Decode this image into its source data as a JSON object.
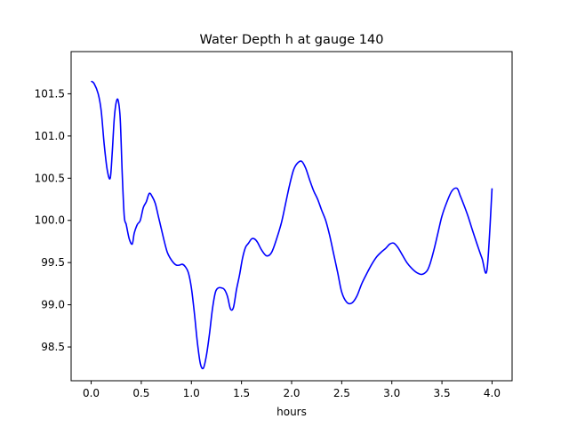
{
  "chart_data": {
    "type": "line",
    "title": "Water Depth h at gauge 140",
    "xlabel": "hours",
    "ylabel": "",
    "xlim": [
      -0.2,
      4.2
    ],
    "ylim": [
      98.1,
      102.0
    ],
    "xticks": [
      0.0,
      0.5,
      1.0,
      1.5,
      2.0,
      2.5,
      3.0,
      3.5,
      4.0
    ],
    "xtick_labels": [
      "0.0",
      "0.5",
      "1.0",
      "1.5",
      "2.0",
      "2.5",
      "3.0",
      "3.5",
      "4.0"
    ],
    "yticks": [
      98.5,
      99.0,
      99.5,
      100.0,
      100.5,
      101.0,
      101.5
    ],
    "ytick_labels": [
      "98.5",
      "99.0",
      "99.5",
      "100.0",
      "100.5",
      "101.0",
      "101.5"
    ],
    "grid": false,
    "series": [
      {
        "color": "#0000ff",
        "x": [
          0.0,
          0.03,
          0.07,
          0.1,
          0.13,
          0.16,
          0.19,
          0.21,
          0.23,
          0.25,
          0.27,
          0.29,
          0.31,
          0.33,
          0.35,
          0.38,
          0.41,
          0.43,
          0.46,
          0.49,
          0.52,
          0.55,
          0.58,
          0.61,
          0.64,
          0.67,
          0.7,
          0.73,
          0.76,
          0.79,
          0.82,
          0.85,
          0.88,
          0.91,
          0.94,
          0.97,
          1.0,
          1.03,
          1.06,
          1.09,
          1.12,
          1.15,
          1.18,
          1.21,
          1.24,
          1.27,
          1.3,
          1.33,
          1.36,
          1.39,
          1.42,
          1.45,
          1.48,
          1.51,
          1.54,
          1.57,
          1.6,
          1.63,
          1.66,
          1.7,
          1.75,
          1.8,
          1.85,
          1.9,
          1.94,
          1.98,
          2.02,
          2.06,
          2.1,
          2.14,
          2.18,
          2.22,
          2.26,
          2.3,
          2.34,
          2.38,
          2.42,
          2.46,
          2.5,
          2.55,
          2.6,
          2.65,
          2.7,
          2.75,
          2.8,
          2.85,
          2.9,
          2.94,
          2.98,
          3.02,
          3.06,
          3.1,
          3.15,
          3.2,
          3.25,
          3.3,
          3.35,
          3.38,
          3.42,
          3.46,
          3.5,
          3.55,
          3.6,
          3.65,
          3.68,
          3.72,
          3.76,
          3.8,
          3.85,
          3.9,
          3.95,
          4.0
        ],
        "values": [
          101.65,
          101.62,
          101.5,
          101.3,
          100.9,
          100.6,
          100.5,
          100.8,
          101.2,
          101.4,
          101.42,
          101.2,
          100.55,
          100.05,
          99.95,
          99.78,
          99.72,
          99.85,
          99.95,
          100.0,
          100.15,
          100.22,
          100.32,
          100.28,
          100.2,
          100.05,
          99.9,
          99.75,
          99.62,
          99.55,
          99.5,
          99.47,
          99.47,
          99.48,
          99.45,
          99.38,
          99.2,
          98.9,
          98.55,
          98.3,
          98.25,
          98.4,
          98.65,
          98.95,
          99.15,
          99.2,
          99.2,
          99.18,
          99.1,
          98.95,
          98.97,
          99.18,
          99.35,
          99.55,
          99.68,
          99.73,
          99.78,
          99.78,
          99.74,
          99.65,
          99.58,
          99.62,
          99.78,
          99.98,
          100.2,
          100.42,
          100.6,
          100.68,
          100.7,
          100.62,
          100.48,
          100.35,
          100.25,
          100.12,
          100.0,
          99.82,
          99.6,
          99.38,
          99.15,
          99.03,
          99.02,
          99.1,
          99.25,
          99.37,
          99.48,
          99.57,
          99.63,
          99.67,
          99.72,
          99.73,
          99.68,
          99.6,
          99.5,
          99.43,
          99.38,
          99.36,
          99.4,
          99.48,
          99.65,
          99.85,
          100.05,
          100.22,
          100.35,
          100.38,
          100.3,
          100.18,
          100.05,
          99.9,
          99.72,
          99.55,
          99.42,
          100.38
        ]
      }
    ]
  }
}
